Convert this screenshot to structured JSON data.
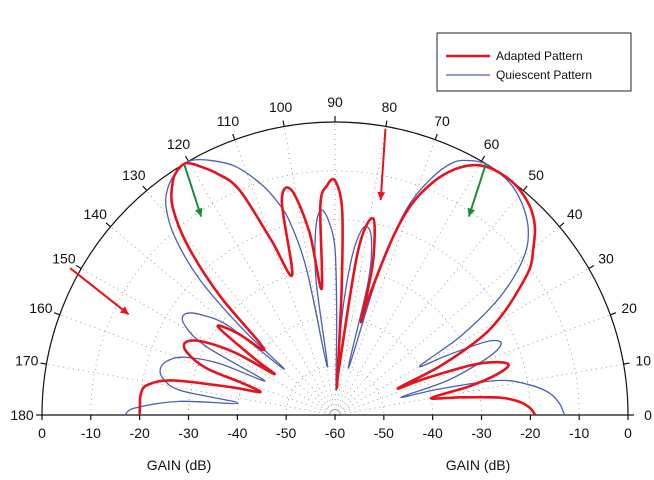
{
  "chart_data": {
    "type": "polar",
    "title": "",
    "legend": {
      "placement": "top-right",
      "entries": [
        {
          "label": "Adapted Pattern",
          "color": "#e8121d"
        },
        {
          "label": "Quiescent Pattern",
          "color": "#4a5fb5"
        }
      ]
    },
    "angle_ticks_deg": [
      0,
      10,
      20,
      30,
      40,
      50,
      60,
      70,
      80,
      90,
      100,
      110,
      120,
      130,
      140,
      150,
      160,
      170,
      180
    ],
    "angle_labels": [
      "0",
      "10",
      "20",
      "30",
      "40",
      "50",
      "60",
      "70",
      "80",
      "90",
      "100",
      "110",
      "120",
      "130",
      "140",
      "150",
      "160",
      "170",
      "180"
    ],
    "radial_range_db": [
      -60,
      0
    ],
    "left_ticks": [
      0,
      -10,
      -20,
      -30,
      -40,
      -50,
      -60
    ],
    "left_tick_labels": [
      "0",
      "-10",
      "-20",
      "-30",
      "-40",
      "-50",
      "-60"
    ],
    "right_ticks": [
      -50,
      -40,
      -30,
      -20,
      -10,
      0
    ],
    "right_tick_labels": [
      "-50",
      "-40",
      "-30",
      "-20",
      "-10",
      "0"
    ],
    "xlabel_left": "GAIN (dB)",
    "xlabel_right": "GAIN (dB)",
    "series": [
      {
        "name": "Adapted Pattern",
        "color": "#e8121d",
        "points": [
          [
            0,
            -19
          ],
          [
            2,
            -20
          ],
          [
            4,
            -22
          ],
          [
            6,
            -26
          ],
          [
            8,
            -34
          ],
          [
            10,
            -40
          ],
          [
            12,
            -32
          ],
          [
            14,
            -26
          ],
          [
            16,
            -23
          ],
          [
            18,
            -25
          ],
          [
            20,
            -30
          ],
          [
            22,
            -40
          ],
          [
            23,
            -46
          ],
          [
            25,
            -36
          ],
          [
            28,
            -26
          ],
          [
            31,
            -20
          ],
          [
            34,
            -15
          ],
          [
            37,
            -10
          ],
          [
            40,
            -7
          ],
          [
            43,
            -4
          ],
          [
            46,
            -2
          ],
          [
            49,
            -0.8
          ],
          [
            52,
            -0.1
          ],
          [
            55,
            0
          ],
          [
            58,
            -0.3
          ],
          [
            61,
            -1.5
          ],
          [
            64,
            -4
          ],
          [
            67,
            -8
          ],
          [
            70,
            -14
          ],
          [
            72,
            -22
          ],
          [
            74,
            -35
          ],
          [
            74.5,
            -40
          ],
          [
            76,
            -28
          ],
          [
            79,
            -19
          ],
          [
            82,
            -26
          ],
          [
            85,
            -50
          ],
          [
            86,
            -53
          ],
          [
            87,
            -34
          ],
          [
            88,
            -18
          ],
          [
            90,
            -12
          ],
          [
            92,
            -13
          ],
          [
            94,
            -17
          ],
          [
            96,
            -34
          ],
          [
            98,
            -22
          ],
          [
            101,
            -13
          ],
          [
            104,
            -15
          ],
          [
            107,
            -30
          ],
          [
            110,
            -22
          ],
          [
            113,
            -10
          ],
          [
            116,
            -5
          ],
          [
            119,
            -1.5
          ],
          [
            120,
            -0.5
          ],
          [
            121,
            0
          ],
          [
            123,
            -0.5
          ],
          [
            125,
            -2
          ],
          [
            128,
            -6
          ],
          [
            131,
            -14
          ],
          [
            134,
            -26
          ],
          [
            136,
            -38
          ],
          [
            138,
            -40
          ],
          [
            140,
            -34
          ],
          [
            143,
            -30
          ],
          [
            145,
            -40
          ],
          [
            146,
            -45
          ],
          [
            148,
            -36
          ],
          [
            151,
            -29
          ],
          [
            154,
            -26
          ],
          [
            157,
            -27
          ],
          [
            160,
            -32
          ],
          [
            161,
            -40
          ],
          [
            163,
            -44
          ],
          [
            165,
            -38
          ],
          [
            168,
            -26
          ],
          [
            171,
            -21
          ],
          [
            174,
            -20
          ],
          [
            177,
            -20
          ],
          [
            180,
            -20
          ]
        ]
      },
      {
        "name": "Quiescent Pattern",
        "color": "#4a5fb5",
        "points": [
          [
            0,
            -13
          ],
          [
            3,
            -14
          ],
          [
            6,
            -16
          ],
          [
            9,
            -20
          ],
          [
            12,
            -26
          ],
          [
            14,
            -38
          ],
          [
            15,
            -46
          ],
          [
            17,
            -36
          ],
          [
            20,
            -28
          ],
          [
            22,
            -24
          ],
          [
            24,
            -23
          ],
          [
            26,
            -26
          ],
          [
            28,
            -34
          ],
          [
            30,
            -40
          ],
          [
            32,
            -30
          ],
          [
            35,
            -20
          ],
          [
            38,
            -13
          ],
          [
            41,
            -8
          ],
          [
            44,
            -5
          ],
          [
            47,
            -3
          ],
          [
            50,
            -1.5
          ],
          [
            53,
            -0.5
          ],
          [
            56,
            -0.1
          ],
          [
            59,
            0
          ],
          [
            62,
            -1
          ],
          [
            65,
            -3
          ],
          [
            68,
            -8
          ],
          [
            71,
            -16
          ],
          [
            73,
            -30
          ],
          [
            74,
            -50
          ],
          [
            76,
            -32
          ],
          [
            78,
            -24
          ],
          [
            80,
            -21
          ],
          [
            82,
            -22
          ],
          [
            84,
            -28
          ],
          [
            86,
            -40
          ],
          [
            87,
            -55
          ],
          [
            89,
            -40
          ],
          [
            90,
            -26
          ],
          [
            92,
            -20
          ],
          [
            94,
            -18
          ],
          [
            96,
            -22
          ],
          [
            98,
            -32
          ],
          [
            99,
            -50
          ],
          [
            101,
            -30
          ],
          [
            103,
            -20
          ],
          [
            105,
            -15
          ],
          [
            108,
            -10
          ],
          [
            112,
            -5
          ],
          [
            116,
            -2
          ],
          [
            119,
            -0.3
          ],
          [
            121,
            0
          ],
          [
            123,
            -0.5
          ],
          [
            126,
            -2
          ],
          [
            129,
            -5
          ],
          [
            132,
            -11
          ],
          [
            135,
            -21
          ],
          [
            137,
            -34
          ],
          [
            138,
            -46
          ],
          [
            140,
            -32
          ],
          [
            143,
            -26
          ],
          [
            146,
            -23
          ],
          [
            149,
            -24
          ],
          [
            152,
            -30
          ],
          [
            154,
            -44
          ],
          [
            156,
            -34
          ],
          [
            159,
            -27
          ],
          [
            162,
            -24
          ],
          [
            165,
            -23
          ],
          [
            168,
            -24
          ],
          [
            171,
            -28
          ],
          [
            173,
            -40
          ],
          [
            175,
            -28
          ],
          [
            178,
            -19
          ],
          [
            180,
            -17
          ]
        ]
      }
    ],
    "annotations": [
      {
        "type": "arrow",
        "color": "#e8121d",
        "from": {
          "angle": 151,
          "gain": 2
        },
        "to": {
          "angle": 154,
          "gain": -13
        }
      },
      {
        "type": "arrow",
        "color": "#e8121d",
        "from": {
          "angle": 80,
          "gain": -0.5
        },
        "to": {
          "angle": 78,
          "gain": -15
        }
      },
      {
        "type": "arrow",
        "color": "#1d8a3a",
        "from": {
          "angle": 121,
          "gain": 0
        },
        "to": {
          "angle": 124,
          "gain": -11
        }
      },
      {
        "type": "arrow",
        "color": "#1d8a3a",
        "from": {
          "angle": 59,
          "gain": 0
        },
        "to": {
          "angle": 56,
          "gain": -11
        }
      }
    ],
    "grid": true
  }
}
